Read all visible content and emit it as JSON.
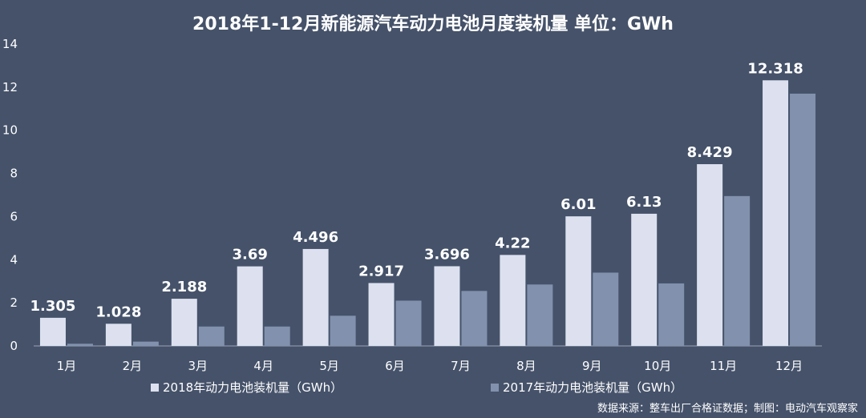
{
  "chart_data": {
    "type": "bar",
    "title": "2018年1-12月新能源汽车动力电池月度装机量 单位：GWh",
    "categories": [
      "1月",
      "2月",
      "3月",
      "4月",
      "5月",
      "6月",
      "7月",
      "8月",
      "9月",
      "10月",
      "11月",
      "12月"
    ],
    "series": [
      {
        "name": "2018年动力电池装机量（GWh）",
        "values": [
          1.305,
          1.028,
          2.188,
          3.69,
          4.496,
          2.917,
          3.696,
          4.22,
          6.01,
          6.13,
          8.429,
          12.318
        ],
        "labels": [
          "1.305",
          "1.028",
          "2.188",
          "3.69",
          "4.496",
          "2.917",
          "3.696",
          "4.22",
          "6.01",
          "6.13",
          "8.429",
          "12.318"
        ],
        "color": "#dde1ef"
      },
      {
        "name": "2017年动力电池装机量（GWh）",
        "values": [
          0.1,
          0.2,
          0.9,
          0.9,
          1.4,
          2.1,
          2.55,
          2.85,
          3.4,
          2.9,
          6.95,
          11.7
        ],
        "color": "#8291ad"
      }
    ],
    "ylim": [
      0,
      14
    ],
    "yticks": [
      0,
      2,
      4,
      6,
      8,
      10,
      12,
      14
    ],
    "grid": false,
    "legend_position": "bottom"
  },
  "source": "数据来源：整车出厂合格证数据；制图：电动汽车观察家"
}
